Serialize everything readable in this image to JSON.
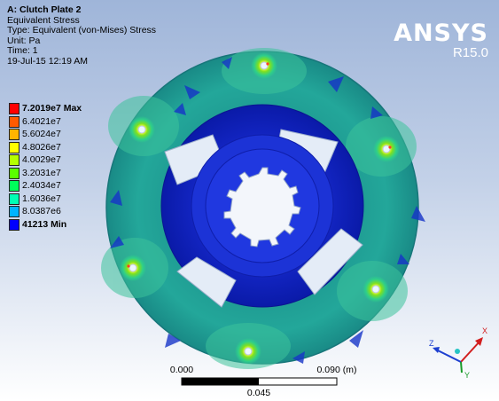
{
  "info": {
    "title": "A: Clutch Plate 2",
    "result": "Equivalent Stress",
    "type": "Type: Equivalent (von-Mises) Stress",
    "unit": "Unit: Pa",
    "time": "Time: 1",
    "date": "19-Jul-15 12:19 AM"
  },
  "logo": {
    "brand": "ANSYS",
    "version": "R15.0"
  },
  "legend": [
    {
      "label": "7.2019e7 Max",
      "color": "#ff0000",
      "bold": true
    },
    {
      "label": "6.4021e7",
      "color": "#ff5a00",
      "bold": false
    },
    {
      "label": "5.6024e7",
      "color": "#ffb400",
      "bold": false
    },
    {
      "label": "4.8026e7",
      "color": "#ffff00",
      "bold": false
    },
    {
      "label": "4.0029e7",
      "color": "#b4ff00",
      "bold": false
    },
    {
      "label": "3.2031e7",
      "color": "#5aff00",
      "bold": false
    },
    {
      "label": "2.4034e7",
      "color": "#00ff5a",
      "bold": false
    },
    {
      "label": "1.6036e7",
      "color": "#00ffb4",
      "bold": false
    },
    {
      "label": "8.0387e6",
      "color": "#00b4ff",
      "bold": false
    },
    {
      "label": "41213 Min",
      "color": "#0000ff",
      "bold": true
    }
  ],
  "scale": {
    "left": "0.000",
    "right": "0.090 (m)",
    "mid": "0.045"
  },
  "triad": {
    "x": "X",
    "y": "Y",
    "z": "Z"
  }
}
